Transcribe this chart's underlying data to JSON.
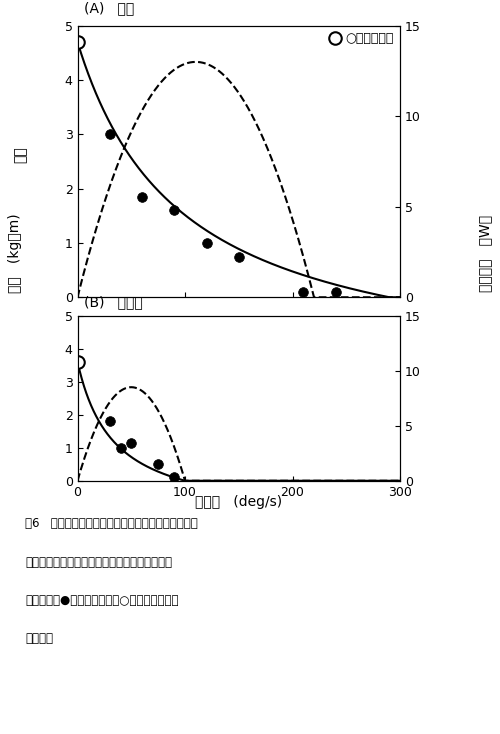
{
  "panel_A": {
    "title": "(A)   健侧",
    "open_circle": [
      0,
      4.7
    ],
    "filled_circles_x": [
      30,
      60,
      90,
      120,
      150,
      210,
      240
    ],
    "filled_circles_y": [
      3.0,
      1.85,
      1.6,
      1.0,
      0.75,
      0.1,
      0.1
    ],
    "F0": 4.7,
    "v0": 290,
    "a_hill": 0.25,
    "power_peak_x": 110,
    "power_peak_y_watts": 13.0,
    "ylim_left": [
      0,
      5
    ],
    "ylim_right": [
      0,
      15
    ],
    "xlim": [
      0,
      300
    ]
  },
  "panel_B": {
    "title": "(B)   麻痺側",
    "open_circle": [
      0,
      3.6
    ],
    "filled_circles_x": [
      30,
      40,
      50,
      75,
      90
    ],
    "filled_circles_y": [
      1.8,
      1.0,
      1.15,
      0.5,
      0.1
    ],
    "F0": 3.6,
    "v0": 100,
    "a_hill": 0.25,
    "power_peak_x": 50,
    "power_peak_y_watts": 8.5,
    "ylim_left": [
      0,
      5
    ],
    "ylim_right": [
      0,
      15
    ],
    "xlim": [
      0,
      300
    ]
  },
  "xlabel": "角速度   (deg/s)",
  "ylabel_left": "筋力   (kg・m)",
  "ylabel_right": "筋パワー   （W）",
  "legend_label": "○：最大筋力",
  "caption_line1": "囶6   脳性麻痺児（片麻痺）の脚伸展運動における運",
  "caption_line2": "動速度と動的筋力（実線），筋パワー（破線）",
  "caption_line3": "との関係．●印は動的筋力，○印は実測した最",
  "caption_line4": "大筋力．",
  "bg_color": "#ffffff",
  "line_color": "#000000",
  "figsize": [
    5.0,
    7.34
  ],
  "dpi": 100
}
